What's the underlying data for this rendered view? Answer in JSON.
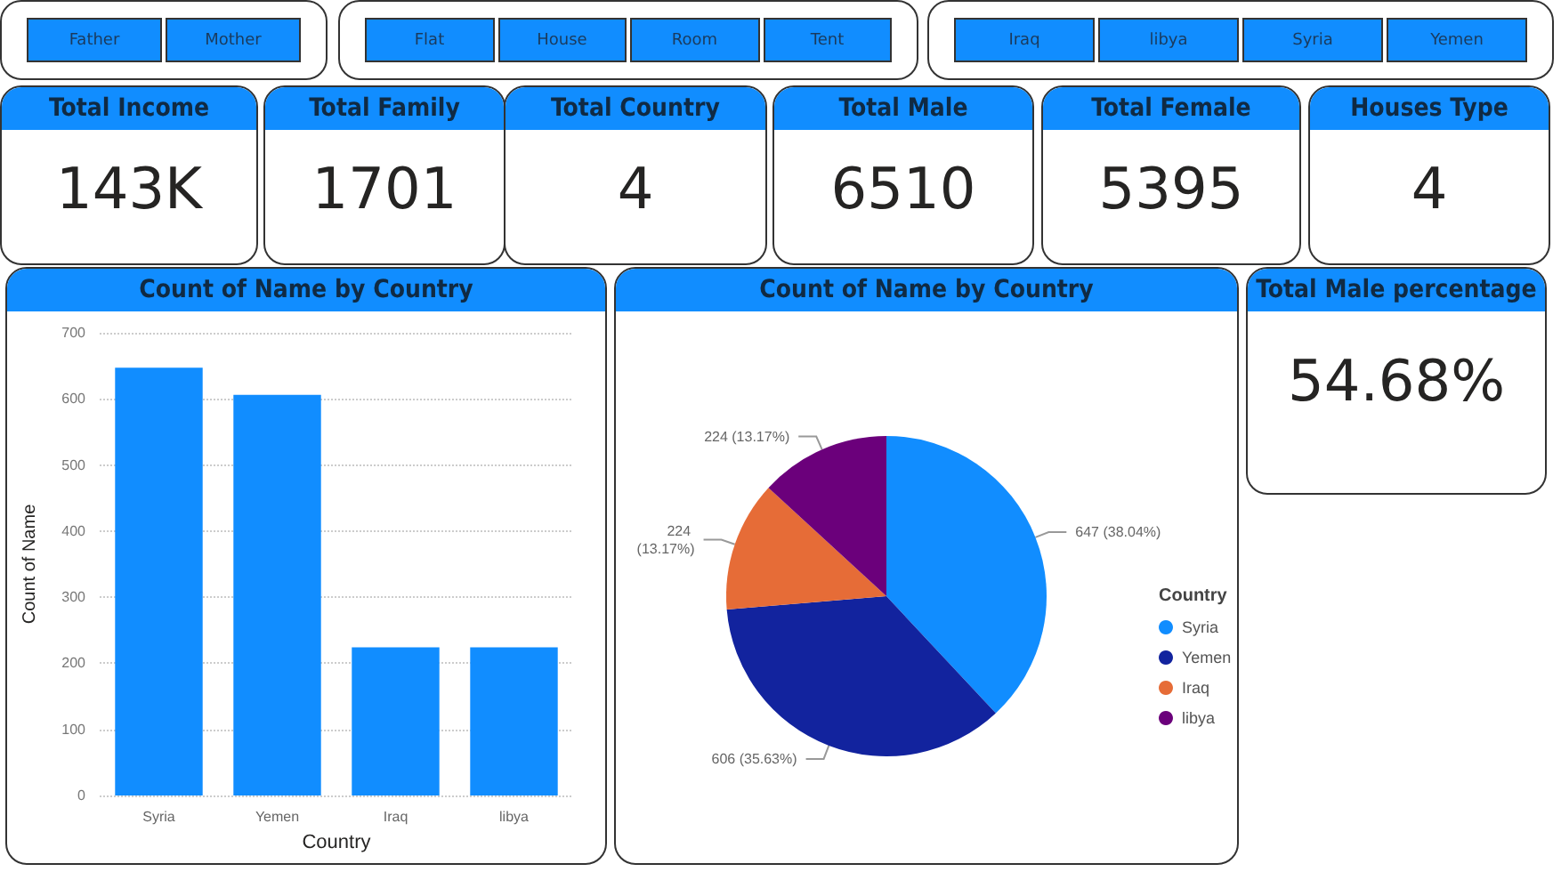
{
  "chart_data": [
    {
      "type": "other",
      "annotations": [
        "Father",
        "Mother"
      ]
    },
    {
      "type": "other",
      "annotations": [
        "Flat",
        "House",
        "Room",
        "Tent"
      ]
    },
    {
      "type": "other",
      "annotations": [
        "Iraq",
        "libya",
        "Syria",
        "Yemen"
      ]
    },
    {
      "type": "other",
      "title": "Total Income",
      "annotations": [
        "143K"
      ]
    },
    {
      "type": "other",
      "title": "Total Family",
      "annotations": [
        "1701"
      ]
    },
    {
      "type": "other",
      "title": "Total Country",
      "annotations": [
        "4"
      ]
    },
    {
      "type": "other",
      "title": "Total Male",
      "annotations": [
        "6510"
      ]
    },
    {
      "type": "other",
      "title": "Total Female",
      "annotations": [
        "5395"
      ]
    },
    {
      "type": "other",
      "title": "Houses Type",
      "annotations": [
        "4"
      ]
    },
    {
      "type": "bar",
      "title": "Count of Name by Country",
      "xlabel": "Country",
      "ylabel": "Count of Name",
      "categories": [
        "Syria",
        "Yemen",
        "Iraq",
        "libya"
      ],
      "values": [
        647,
        606,
        224,
        224
      ],
      "color": "#118dff",
      "ylim": [
        0,
        700
      ],
      "yticks": [
        0,
        100,
        200,
        300,
        400,
        500,
        600,
        700
      ],
      "grid": "y"
    },
    {
      "type": "pie",
      "title": "Count of Name by Country",
      "legend_title": "Country",
      "legend": "right",
      "categories": [
        "Syria",
        "Yemen",
        "Iraq",
        "libya"
      ],
      "values": [
        647,
        606,
        224,
        224
      ],
      "colors": [
        "#118dff",
        "#12239e",
        "#e66c37",
        "#6b007b"
      ],
      "value_labels": [
        "647 (38.04%)",
        "606 (35.63%)",
        "224 (13.17%)",
        "224 (13.17%)"
      ]
    },
    {
      "type": "other",
      "title": "Total Male percentage",
      "annotations": [
        "54.68%"
      ]
    }
  ]
}
